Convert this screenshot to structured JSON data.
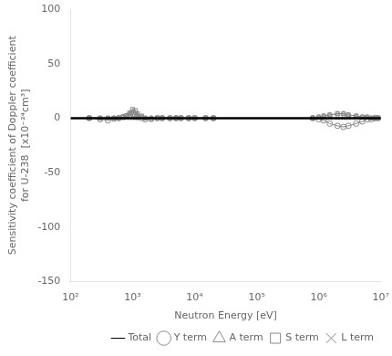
{
  "chart_data": {
    "type": "line",
    "xlabel": "Neutron Energy [eV]",
    "ylabel": [
      "Sensitivity coefficient of Doppler coefficient",
      "for U-238  [x10⁻²⁴cm³]"
    ],
    "log": "x",
    "grid": false,
    "legend": "lower right",
    "xlim": [
      100,
      10000000
    ],
    "xticks": [
      {
        "value": 100,
        "label": "10²"
      },
      {
        "value": 1000,
        "label": "10³"
      },
      {
        "value": 10000,
        "label": "10⁴"
      },
      {
        "value": 100000,
        "label": "10⁵"
      },
      {
        "value": 1000000,
        "label": "10⁶"
      },
      {
        "value": 10000000,
        "label": "10⁷"
      }
    ],
    "ylim": [
      -150,
      100
    ],
    "yticks": [
      -150,
      -100,
      -50,
      0,
      50,
      100
    ],
    "series": [
      {
        "name": "Total",
        "color": "#000000",
        "x": [
          100,
          1000,
          10000,
          100000,
          1000000,
          10000000
        ],
        "values": [
          0,
          0,
          0,
          0,
          0,
          0
        ]
      },
      {
        "name": "Y term",
        "color": "#888888",
        "marker": "circle",
        "x": [
          200,
          300,
          400,
          500,
          600,
          700,
          800,
          900,
          1000,
          1100,
          1200,
          1400,
          1600,
          2000,
          2500,
          3000,
          4000,
          5000,
          6000,
          8000,
          10000,
          15000,
          20000
        ],
        "values": [
          0,
          -1,
          -2,
          -0.5,
          0,
          1,
          2,
          3,
          4,
          3,
          1,
          0,
          -1,
          -0.5,
          0,
          0,
          0,
          0,
          0,
          0,
          0,
          0,
          0
        ]
      },
      {
        "color": "#888888",
        "marker": "circle",
        "x": [
          800000,
          1000000,
          1200000,
          1500000,
          2000000,
          2500000,
          3000000,
          4000000,
          5000000,
          6000000,
          7000000,
          8000000,
          9000000
        ],
        "values": [
          0,
          -1,
          -2,
          -5,
          -7,
          -8,
          -7,
          -5,
          -3,
          -1,
          -1,
          0,
          0
        ]
      },
      {
        "name": "A term",
        "color": "#888888",
        "marker": "triangle",
        "x": [
          200,
          300,
          400,
          500,
          600,
          700,
          800,
          900,
          1000,
          1100,
          1200,
          1400,
          1600,
          2000,
          2500,
          3000,
          4000,
          5000,
          6000,
          8000,
          10000,
          15000,
          20000
        ],
        "values": [
          0,
          0,
          0,
          0,
          0,
          1,
          2,
          4,
          6,
          5,
          3,
          1,
          0,
          0,
          0,
          0,
          0,
          0,
          0,
          0,
          0,
          0,
          0
        ]
      },
      {
        "color": "#888888",
        "marker": "triangle",
        "x": [
          800000,
          1000000,
          1200000,
          1500000,
          2000000,
          2500000,
          3000000,
          4000000,
          5000000,
          6000000,
          7000000,
          8000000,
          9000000
        ],
        "values": [
          0,
          1,
          2,
          3,
          4,
          4,
          3,
          2,
          1,
          1,
          0,
          0,
          0
        ]
      },
      {
        "name": "S term",
        "color": "#888888",
        "marker": "square",
        "x": [
          200,
          300,
          400,
          500,
          600,
          700,
          800,
          900,
          1000,
          1100,
          1200,
          1400,
          1600,
          2000,
          2500,
          3000,
          4000,
          5000,
          6000,
          8000,
          10000,
          15000,
          20000
        ],
        "values": [
          0,
          0,
          0,
          0,
          0,
          1,
          2,
          5,
          8,
          7,
          4,
          2,
          0,
          -1,
          0,
          0,
          0,
          0,
          0,
          0,
          0,
          0,
          0
        ]
      },
      {
        "color": "#888888",
        "marker": "square",
        "x": [
          800000,
          1000000,
          1200000,
          1500000,
          2000000,
          2500000,
          3000000,
          4000000,
          5000000,
          6000000,
          7000000,
          8000000,
          9000000
        ],
        "values": [
          0,
          1,
          2,
          3,
          4,
          4,
          3,
          2,
          1,
          1,
          0,
          0,
          0
        ]
      },
      {
        "name": "L term",
        "color": "#888888",
        "marker": "x",
        "x": [
          200,
          300,
          400,
          500,
          600,
          700,
          800,
          900,
          1000,
          1100,
          1200,
          1400,
          1600,
          2000,
          2500,
          3000,
          4000,
          5000,
          6000,
          8000,
          10000,
          15000,
          20000
        ],
        "values": [
          0,
          0,
          0,
          0,
          0,
          0,
          0,
          0,
          0,
          0,
          0,
          0,
          0,
          0,
          0,
          0,
          0,
          0,
          0,
          0,
          0,
          0,
          0
        ]
      },
      {
        "color": "#888888",
        "marker": "x",
        "x": [
          800000,
          1000000,
          1200000,
          1500000,
          2000000,
          2500000,
          3000000,
          4000000,
          5000000,
          6000000,
          7000000,
          8000000,
          9000000
        ],
        "values": [
          0,
          0,
          0,
          0,
          0,
          0,
          0,
          0,
          0,
          0,
          0,
          0,
          0
        ]
      }
    ]
  }
}
